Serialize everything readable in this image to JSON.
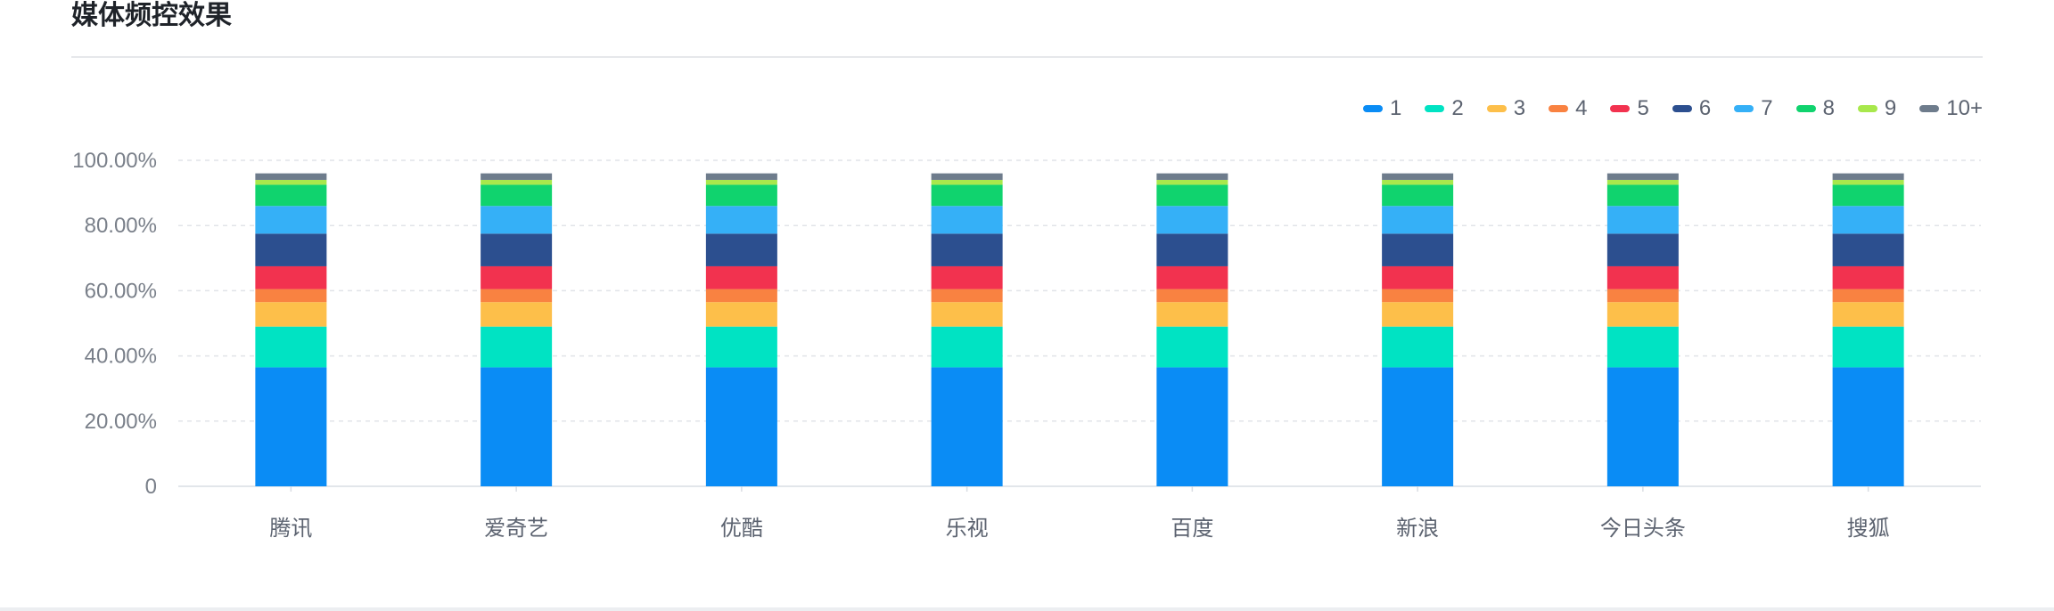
{
  "header": {
    "title": "媒体频控效果"
  },
  "chart_data": {
    "type": "bar",
    "stacked": true,
    "title": "媒体频控效果",
    "xlabel": "",
    "ylabel": "",
    "ylim": [
      0,
      100
    ],
    "yticks": [
      "0",
      "20.00%",
      "40.00%",
      "60.00%",
      "80.00%",
      "100.00%"
    ],
    "grid": true,
    "legend_position": "top-right",
    "categories": [
      "腾讯",
      "爱奇艺",
      "优酷",
      "乐视",
      "百度",
      "新浪",
      "今日头条",
      "搜狐"
    ],
    "series": [
      {
        "name": "1",
        "color": "#0a8cf5",
        "values": [
          36.5,
          36.5,
          36.5,
          36.5,
          36.5,
          36.5,
          36.5,
          36.5
        ]
      },
      {
        "name": "2",
        "color": "#00e3c3",
        "values": [
          12.5,
          12.5,
          12.5,
          12.5,
          12.5,
          12.5,
          12.5,
          12.5
        ]
      },
      {
        "name": "3",
        "color": "#fdbf4a",
        "values": [
          7.5,
          7.5,
          7.5,
          7.5,
          7.5,
          7.5,
          7.5,
          7.5
        ]
      },
      {
        "name": "4",
        "color": "#f98241",
        "values": [
          4.0,
          4.0,
          4.0,
          4.0,
          4.0,
          4.0,
          4.0,
          4.0
        ]
      },
      {
        "name": "5",
        "color": "#f2324f",
        "values": [
          7.0,
          7.0,
          7.0,
          7.0,
          7.0,
          7.0,
          7.0,
          7.0
        ]
      },
      {
        "name": "6",
        "color": "#2c4f8f",
        "values": [
          10.0,
          10.0,
          10.0,
          10.0,
          10.0,
          10.0,
          10.0,
          10.0
        ]
      },
      {
        "name": "7",
        "color": "#35b0f7",
        "values": [
          8.5,
          8.5,
          8.5,
          8.5,
          8.5,
          8.5,
          8.5,
          8.5
        ]
      },
      {
        "name": "8",
        "color": "#10d36e",
        "values": [
          6.5,
          6.5,
          6.5,
          6.5,
          6.5,
          6.5,
          6.5,
          6.5
        ]
      },
      {
        "name": "9",
        "color": "#a8e84c",
        "values": [
          1.5,
          1.5,
          1.5,
          1.5,
          1.5,
          1.5,
          1.5,
          1.5
        ]
      },
      {
        "name": "10+",
        "color": "#6e7c8c",
        "values": [
          2.0,
          2.0,
          2.0,
          2.0,
          2.0,
          2.0,
          2.0,
          2.0
        ]
      }
    ]
  }
}
